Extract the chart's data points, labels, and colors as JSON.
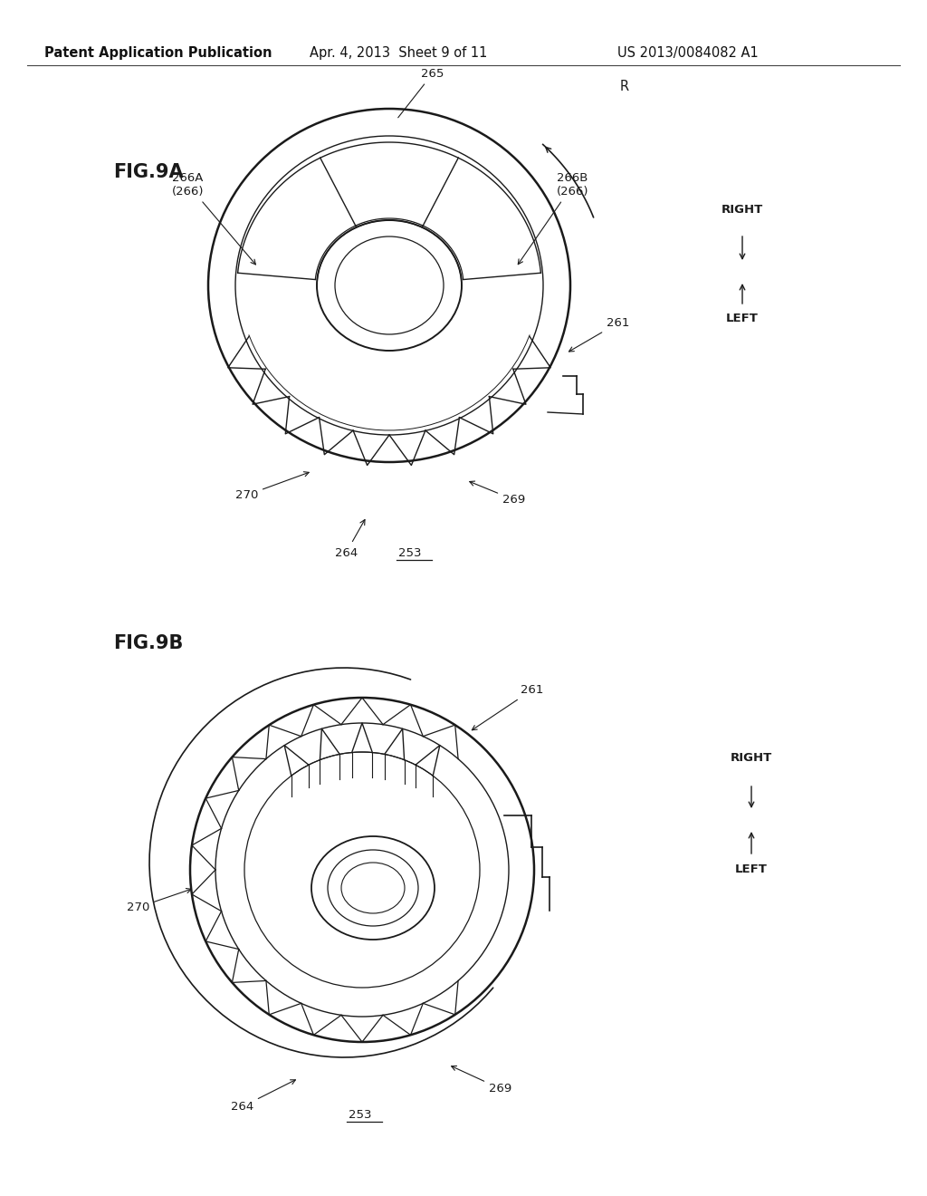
{
  "background_color": "#ffffff",
  "header_left": "Patent Application Publication",
  "header_center": "Apr. 4, 2013  Sheet 9 of 11",
  "header_right": "US 2013/0084082 A1",
  "fig9a_label": "FIG.9A",
  "fig9b_label": "FIG.9B",
  "line_color": "#1a1a1a",
  "annotation_fontsize": 9.5
}
